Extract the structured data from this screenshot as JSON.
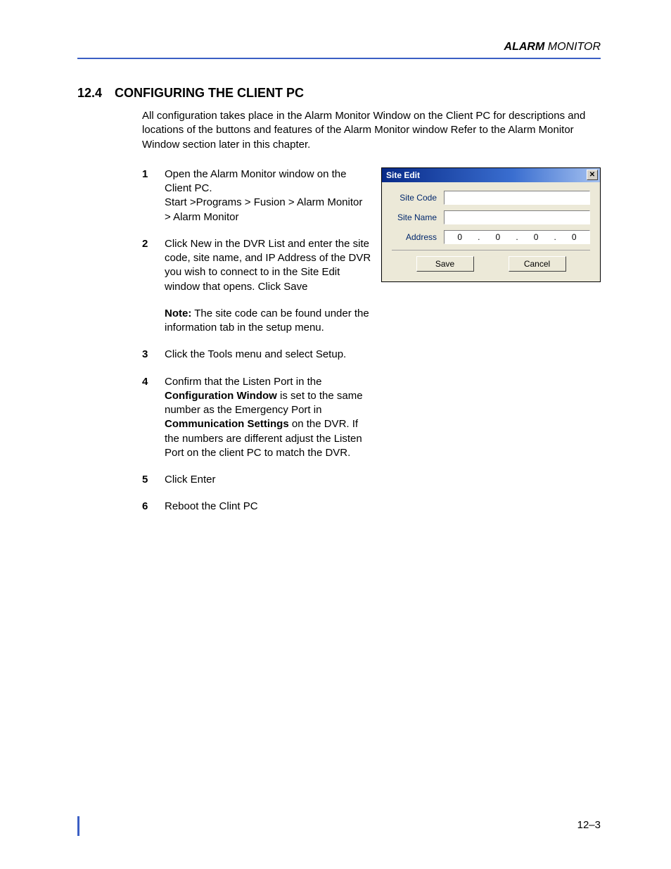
{
  "header": {
    "title_bold": "ALARM",
    "title_rest": " MONITOR"
  },
  "section": {
    "number": "12.4",
    "title": "CONFIGURING THE CLIENT PC",
    "intro": "All configuration takes place in the Alarm Monitor Window on the Client PC for descriptions and locations of the buttons and features of the Alarm Monitor window Refer to the Alarm Monitor Window section later in this chapter."
  },
  "steps": [
    {
      "n": "1",
      "text_a": "Open the Alarm Monitor window on the Client PC.",
      "text_b": "Start >Programs > Fusion > Alarm Monitor > Alarm Monitor"
    },
    {
      "n": "2",
      "text_a": "Click New in the DVR List and enter the site code, site name, and IP Address of the DVR you wish to connect to in the Site Edit window that opens. Click Save"
    },
    {
      "n": "3",
      "text_a": "Click the Tools menu and select Setup."
    },
    {
      "n": "4",
      "seg1": "Confirm that the Listen Port in the ",
      "bold1": "Configuration Window",
      "seg2": " is set to the same number as the Emergency Port in ",
      "bold2": "Communication Settings",
      "seg3": " on the DVR. If the numbers are different adjust the Listen Port on the client PC to match the DVR."
    },
    {
      "n": "5",
      "text_a": "Click Enter"
    },
    {
      "n": "6",
      "text_a": "Reboot the Clint PC"
    }
  ],
  "note": {
    "label": "Note:",
    "text": " The site code can be found under the information tab in the setup menu."
  },
  "dialog": {
    "title": "Site Edit",
    "labels": {
      "code": "Site Code",
      "name": "Site Name",
      "addr": "Address"
    },
    "site_code": "",
    "site_name": "",
    "ip": [
      "0",
      "0",
      "0",
      "0"
    ],
    "save": "Save",
    "cancel": "Cancel"
  },
  "footer": {
    "page": "12–3"
  },
  "colors": {
    "rule": "#3b5fc4",
    "dialog_bg": "#ece9d8",
    "label": "#00276c"
  }
}
